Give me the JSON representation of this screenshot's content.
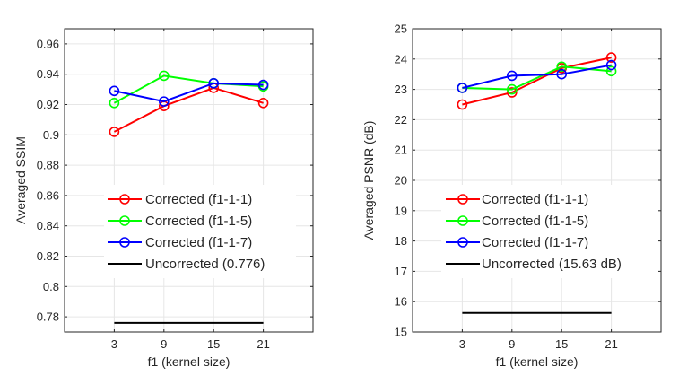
{
  "chart_data": [
    {
      "type": "line",
      "title": "",
      "xlabel": "f1 (kernel size)",
      "ylabel": "Averaged SSIM",
      "categories": [
        "3",
        "9",
        "15",
        "21"
      ],
      "x": [
        3,
        9,
        15,
        21
      ],
      "xlim": [
        -3,
        27
      ],
      "ylim": [
        0.77,
        0.97
      ],
      "yticks": [
        0.78,
        0.8,
        0.82,
        0.84,
        0.86,
        0.88,
        0.9,
        0.92,
        0.94,
        0.96
      ],
      "ytick_labels": [
        "0.78",
        "0.8",
        "0.82",
        "0.84",
        "0.86",
        "0.88",
        "0.9",
        "0.92",
        "0.94",
        "0.96"
      ],
      "grid": true,
      "legend_position": "bottom",
      "series": [
        {
          "name": "Corrected (f1-1-1)",
          "color": "#ff0000",
          "marker": "circle",
          "values": [
            0.902,
            0.919,
            0.931,
            0.921
          ]
        },
        {
          "name": "Corrected (f1-1-5)",
          "color": "#00ff00",
          "marker": "circle",
          "values": [
            0.921,
            0.939,
            0.934,
            0.932
          ]
        },
        {
          "name": "Corrected (f1-1-7)",
          "color": "#0000ff",
          "marker": "circle",
          "values": [
            0.929,
            0.922,
            0.934,
            0.933
          ]
        },
        {
          "name": "Uncorrected (0.776)",
          "color": "#000000",
          "marker": "none",
          "values": [
            0.776,
            0.776,
            0.776,
            0.776
          ]
        }
      ]
    },
    {
      "type": "line",
      "title": "",
      "xlabel": "f1 (kernel size)",
      "ylabel": "Averaged PSNR (dB)",
      "categories": [
        "3",
        "9",
        "15",
        "21"
      ],
      "x": [
        3,
        9,
        15,
        21
      ],
      "xlim": [
        -3,
        27
      ],
      "ylim": [
        15,
        25
      ],
      "yticks": [
        15,
        16,
        17,
        18,
        19,
        20,
        21,
        22,
        23,
        24,
        25
      ],
      "ytick_labels": [
        "15",
        "16",
        "17",
        "18",
        "19",
        "20",
        "21",
        "22",
        "23",
        "24",
        "25"
      ],
      "grid": true,
      "legend_position": "bottom",
      "series": [
        {
          "name": "Corrected (f1-1-1)",
          "color": "#ff0000",
          "marker": "circle",
          "values": [
            22.5,
            22.9,
            23.7,
            24.05
          ]
        },
        {
          "name": "Corrected (f1-1-5)",
          "color": "#00ff00",
          "marker": "circle",
          "values": [
            23.05,
            23.0,
            23.75,
            23.6
          ]
        },
        {
          "name": "Corrected (f1-1-7)",
          "color": "#0000ff",
          "marker": "circle",
          "values": [
            23.05,
            23.45,
            23.5,
            23.8
          ]
        },
        {
          "name": "Uncorrected (15.63 dB)",
          "color": "#000000",
          "marker": "none",
          "values": [
            15.63,
            15.63,
            15.63,
            15.63
          ]
        }
      ]
    }
  ]
}
